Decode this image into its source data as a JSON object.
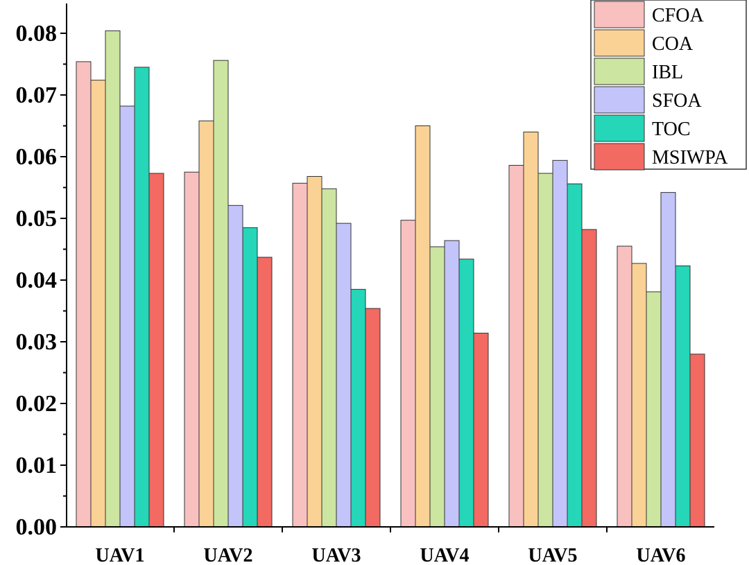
{
  "chart_data": {
    "type": "bar",
    "categories": [
      "UAV1",
      "UAV2",
      "UAV3",
      "UAV4",
      "UAV5",
      "UAV6"
    ],
    "series": [
      {
        "name": "CFOA",
        "color": "#f9c0c0",
        "values": [
          0.0754,
          0.0575,
          0.0557,
          0.0497,
          0.0586,
          0.0455
        ]
      },
      {
        "name": "COA",
        "color": "#fbd295",
        "values": [
          0.0724,
          0.0658,
          0.0568,
          0.065,
          0.064,
          0.0427
        ]
      },
      {
        "name": "IBL",
        "color": "#cce5a0",
        "values": [
          0.0804,
          0.0756,
          0.0548,
          0.0454,
          0.0573,
          0.0381
        ]
      },
      {
        "name": "SFOA",
        "color": "#c2c4fa",
        "values": [
          0.0682,
          0.0521,
          0.0492,
          0.0464,
          0.0594,
          0.0542
        ]
      },
      {
        "name": "TOC",
        "color": "#25d6b8",
        "values": [
          0.0745,
          0.0485,
          0.0385,
          0.0434,
          0.0556,
          0.0423
        ]
      },
      {
        "name": "MSIWPA",
        "color": "#f26a62",
        "values": [
          0.0573,
          0.0437,
          0.0354,
          0.0314,
          0.0482,
          0.028
        ]
      }
    ],
    "yticks": [
      "0.00",
      "0.01",
      "0.02",
      "0.03",
      "0.04",
      "0.05",
      "0.06",
      "0.07",
      "0.08"
    ],
    "ylim": [
      0,
      0.085
    ],
    "title": "",
    "xlabel": "",
    "ylabel": "",
    "legend_position": "top-right",
    "grid": false
  }
}
